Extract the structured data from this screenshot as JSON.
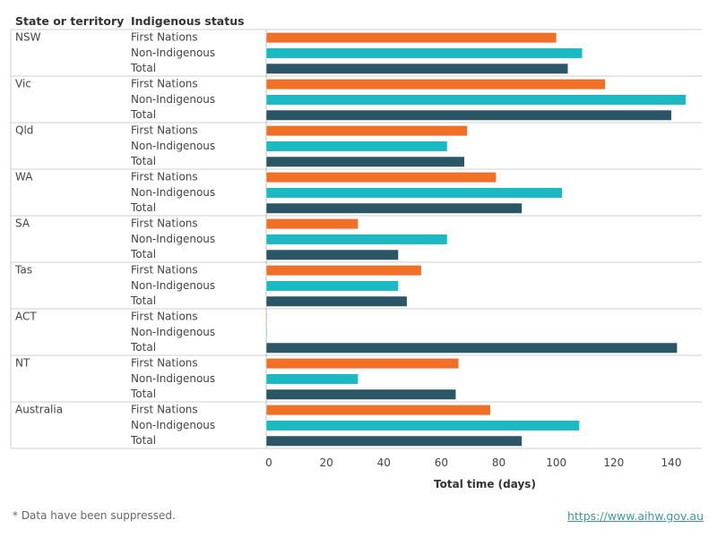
{
  "header": {
    "state_label": "State or territory",
    "status_label": "Indigenous status"
  },
  "footnote": "* Data have been suppressed.",
  "source_link": "https://www.aihw.gov.au",
  "colors": {
    "First Nations": "#f07028",
    "Non-Indigenous": "#1bb9c4",
    "Total": "#2b5665"
  },
  "chart_data": {
    "type": "bar",
    "orientation": "horizontal",
    "xlabel": "Total time (days)",
    "xlim": [
      0,
      145
    ],
    "xticks": [
      0,
      20,
      40,
      60,
      80,
      100,
      120,
      140
    ],
    "grid": false,
    "categories": [
      "First Nations",
      "Non-Indigenous",
      "Total"
    ],
    "groups": [
      {
        "name": "NSW",
        "values": [
          101,
          110,
          105
        ]
      },
      {
        "name": "Vic",
        "values": [
          118,
          146,
          141
        ]
      },
      {
        "name": "Qld",
        "values": [
          70,
          63,
          69
        ]
      },
      {
        "name": "WA",
        "values": [
          80,
          103,
          89
        ]
      },
      {
        "name": "SA",
        "values": [
          32,
          63,
          46
        ]
      },
      {
        "name": "Tas",
        "values": [
          54,
          46,
          49
        ]
      },
      {
        "name": "ACT",
        "values": [
          0,
          0,
          143
        ]
      },
      {
        "name": "NT",
        "values": [
          67,
          32,
          66
        ]
      },
      {
        "name": "Australia",
        "values": [
          78,
          109,
          89
        ]
      }
    ]
  }
}
